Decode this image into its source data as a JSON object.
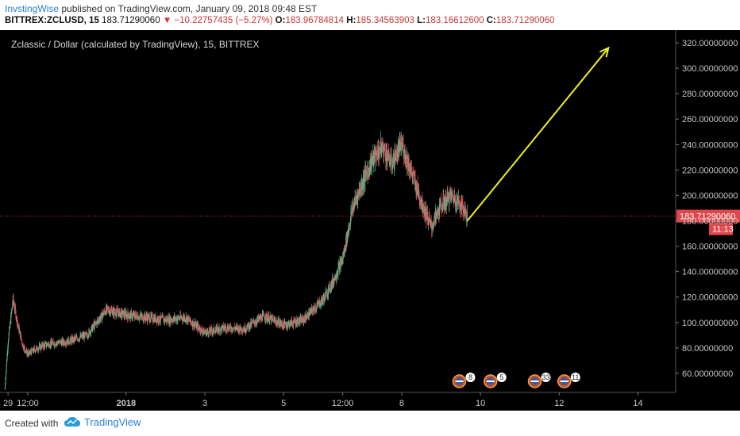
{
  "header": {
    "author": "InvstingWise",
    "published_text": "published on TradingView.com, January 09, 2018 09:48 EST",
    "symbol": "BITTREX:ZCLUSD, 15",
    "last_price": "183.71290060",
    "change_arrow": "▼",
    "change": "−10.22757435 (−5.27%)",
    "o_label": "O:",
    "o_value": "183.96784814",
    "h_label": "H:",
    "h_value": "185.34563903",
    "l_label": "L:",
    "l_value": "183.16612600",
    "c_label": "C:",
    "c_value": "183.71290060"
  },
  "footer": {
    "created_with": "Created with",
    "brand": "TradingView",
    "brand_icon": "tradingview-cloud-icon"
  },
  "colors": {
    "background": "#000000",
    "up": "#53b987",
    "down": "#eb4d5c",
    "arrow": "#f0f01e",
    "price_line": "#c83737",
    "axis_text": "#c8c8c8"
  },
  "chart_data": {
    "type": "candlestick",
    "title": "Zclassic / Dollar (calculated by TradingView), 15, BITTREX",
    "xlabel": "",
    "ylabel": "",
    "ylim": [
      45,
      330
    ],
    "y_ticks": [
      "60.00000000",
      "80.00000000",
      "100.00000000",
      "120.00000000",
      "140.00000000",
      "160.00000000",
      "180.00000000",
      "200.00000000",
      "220.00000000",
      "240.00000000",
      "260.00000000",
      "280.00000000",
      "300.00000000",
      "320.00000000"
    ],
    "y_tick_values": [
      60,
      80,
      100,
      120,
      140,
      160,
      180,
      200,
      220,
      240,
      260,
      280,
      300,
      320
    ],
    "x_unit": "days",
    "x_range": [
      "Dec 28 22:00",
      "Jan 14 23:00"
    ],
    "x_ticks": [
      {
        "label": "29",
        "value": "Dec 29 00:00"
      },
      {
        "label": "12:00",
        "value": "Dec 29 12:00"
      },
      {
        "label": "2018",
        "value": "Jan 1 00:00"
      },
      {
        "label": "3",
        "value": "Jan 3 00:00"
      },
      {
        "label": "5",
        "value": "Jan 5 00:00"
      },
      {
        "label": "12:00",
        "value": "Jan 6 12:00"
      },
      {
        "label": "8",
        "value": "Jan 8 00:00"
      },
      {
        "label": "10",
        "value": "Jan 10 00:00"
      },
      {
        "label": "12",
        "value": "Jan 12 00:00"
      },
      {
        "label": "14",
        "value": "Jan 14 00:00"
      }
    ],
    "price_path": [
      [
        "Dec 28 22:00",
        48
      ],
      [
        "Dec 29 00:00",
        85
      ],
      [
        "Dec 29 03:00",
        118
      ],
      [
        "Dec 29 06:00",
        98
      ],
      [
        "Dec 29 09:00",
        82
      ],
      [
        "Dec 29 12:00",
        75
      ],
      [
        "Dec 29 18:00",
        80
      ],
      [
        "Dec 30 00:00",
        83
      ],
      [
        "Dec 30 12:00",
        85
      ],
      [
        "Dec 31 00:00",
        90
      ],
      [
        "Dec 31 12:00",
        110
      ],
      [
        "Jan 1 00:00",
        106
      ],
      [
        "Jan 1 12:00",
        104
      ],
      [
        "Jan 2 00:00",
        102
      ],
      [
        "Jan 2 12:00",
        104
      ],
      [
        "Jan 3 00:00",
        92
      ],
      [
        "Jan 3 12:00",
        96
      ],
      [
        "Jan 4 00:00",
        95
      ],
      [
        "Jan 4 12:00",
        105
      ],
      [
        "Jan 5 00:00",
        98
      ],
      [
        "Jan 5 12:00",
        102
      ],
      [
        "Jan 6 00:00",
        118
      ],
      [
        "Jan 6 06:00",
        132
      ],
      [
        "Jan 6 12:00",
        150
      ],
      [
        "Jan 6 18:00",
        190
      ],
      [
        "Jan 7 00:00",
        210
      ],
      [
        "Jan 7 06:00",
        228
      ],
      [
        "Jan 7 12:00",
        238
      ],
      [
        "Jan 7 18:00",
        225
      ],
      [
        "Jan 8 00:00",
        240
      ],
      [
        "Jan 8 06:00",
        218
      ],
      [
        "Jan 8 12:00",
        195
      ],
      [
        "Jan 8 18:00",
        175
      ],
      [
        "Jan 9 00:00",
        192
      ],
      [
        "Jan 9 06:00",
        200
      ],
      [
        "Jan 9 12:00",
        193
      ],
      [
        "Jan 9 16:00",
        184
      ]
    ],
    "annotations": {
      "current_price": "183.71290060",
      "countdown": "11:13",
      "trend_arrow": {
        "from": [
          "Jan 9 16:00",
          180
        ],
        "to": [
          "Jan 13 06:00",
          316
        ]
      },
      "events": [
        {
          "label": "8",
          "value": "Jan 9 14:00"
        },
        {
          "label": "5",
          "value": "Jan 10 09:00"
        },
        {
          "label": "33",
          "value": "Jan 11 12:00"
        },
        {
          "label": "11",
          "value": "Jan 12 06:00"
        }
      ]
    },
    "grid": false,
    "legend": "none"
  }
}
